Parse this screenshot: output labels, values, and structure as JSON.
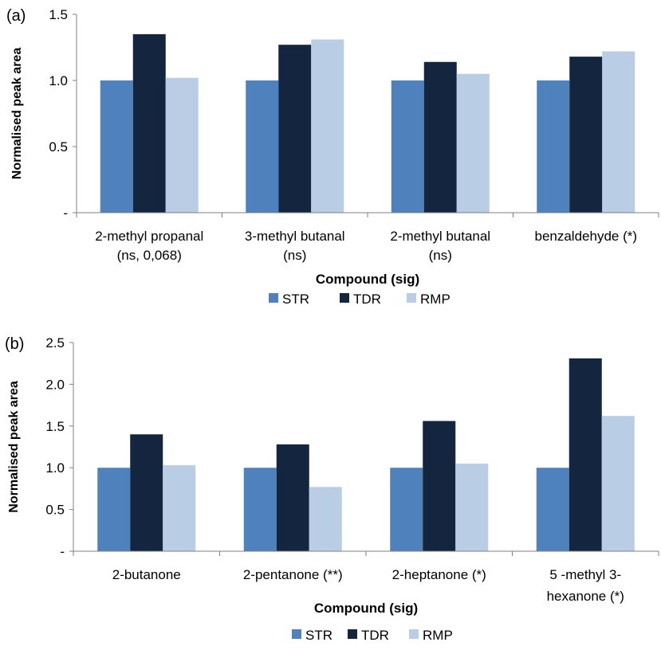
{
  "chart_data": [
    {
      "type": "bar",
      "panel_label": "(a)",
      "xlabel": "Compound (sig)",
      "ylabel": "Normalised peak area",
      "ylim": [
        0,
        1.5
      ],
      "yticks": [
        {
          "value": 0,
          "label": "-"
        },
        {
          "value": 0.5,
          "label": "0.5"
        },
        {
          "value": 1.0,
          "label": "1.0"
        },
        {
          "value": 1.5,
          "label": "1.5"
        }
      ],
      "categories": [
        [
          "2-methyl propanal",
          "(ns, 0,068)"
        ],
        [
          "3-methyl butanal",
          "(ns)"
        ],
        [
          "2-methyl butanal",
          "(ns)"
        ],
        [
          "benzaldehyde (*)"
        ]
      ],
      "series": [
        {
          "name": "STR",
          "color": "#4f81bd",
          "values": [
            1.0,
            1.0,
            1.0,
            1.0
          ]
        },
        {
          "name": "TDR",
          "color": "#14253f",
          "values": [
            1.35,
            1.27,
            1.14,
            1.18
          ]
        },
        {
          "name": "RMP",
          "color": "#b9cde5",
          "values": [
            1.02,
            1.31,
            1.05,
            1.22
          ]
        }
      ],
      "grid": false,
      "legend_position": "bottom"
    },
    {
      "type": "bar",
      "panel_label": "(b)",
      "xlabel": "Compound (sig)",
      "ylabel": "Normalised peak area",
      "ylim": [
        0,
        2.5
      ],
      "yticks": [
        {
          "value": 0,
          "label": "-"
        },
        {
          "value": 0.5,
          "label": "0.5"
        },
        {
          "value": 1.0,
          "label": "1.0"
        },
        {
          "value": 1.5,
          "label": "1.5"
        },
        {
          "value": 2.0,
          "label": "2.0"
        },
        {
          "value": 2.5,
          "label": "2.5"
        }
      ],
      "categories": [
        [
          "2-butanone"
        ],
        [
          "2-pentanone (**)"
        ],
        [
          "2-heptanone (*)"
        ],
        [
          "5 -methyl 3-",
          "hexanone (*)"
        ]
      ],
      "series": [
        {
          "name": "STR",
          "color": "#4f81bd",
          "values": [
            1.0,
            1.0,
            1.0,
            1.0
          ]
        },
        {
          "name": "TDR",
          "color": "#14253f",
          "values": [
            1.4,
            1.28,
            1.56,
            2.31
          ]
        },
        {
          "name": "RMP",
          "color": "#b9cde5",
          "values": [
            1.03,
            0.77,
            1.05,
            1.62
          ]
        }
      ],
      "grid": false,
      "legend_position": "bottom"
    }
  ]
}
